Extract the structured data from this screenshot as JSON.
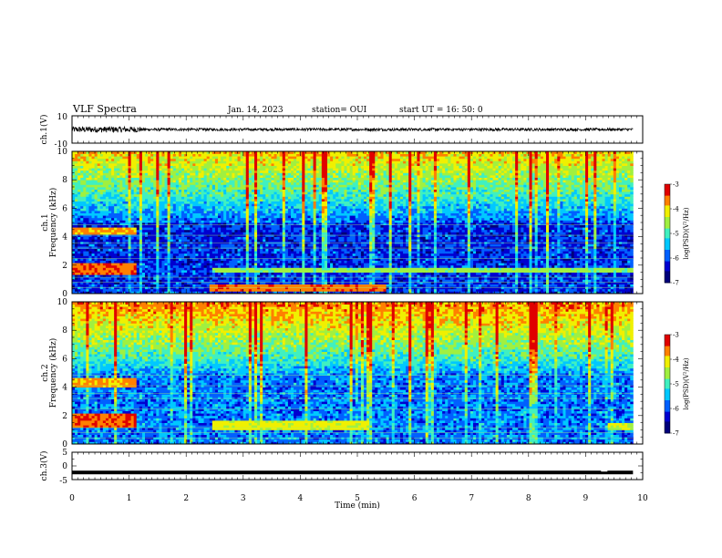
{
  "header": {
    "title": "VLF Spectra",
    "date": "Jan. 14, 2023",
    "station": "station= OUI",
    "start": "start  UT  =   16: 50: 0"
  },
  "chart_data": [
    {
      "type": "line",
      "name": "ch1-waveform",
      "ylabel": "ch.1(V)",
      "ylim": [
        -10,
        10
      ],
      "yticks": [
        "10",
        "-10"
      ],
      "xlim": [
        0,
        10
      ],
      "x_end": 9.83,
      "approx_amplitude": 1.0,
      "burst_range": [
        0.0,
        1.2
      ],
      "burst_amplitude": 2.2
    },
    {
      "type": "heatmap",
      "name": "ch1-spectrogram",
      "xlabel": "",
      "ylabel": "ch.1\nFrequency (kHz)",
      "ylim": [
        0,
        10
      ],
      "yticks": [
        "0",
        "2",
        "4",
        "6",
        "8",
        "10"
      ],
      "xlim": [
        0,
        10
      ],
      "x_end": 9.83,
      "colorbar": {
        "label": "log(PSD)(V²/Hz)",
        "range": [
          -7,
          -3
        ],
        "ticks": [
          "-3",
          "-4",
          "-5",
          "-6",
          "-7"
        ]
      },
      "features": [
        {
          "kind": "band",
          "freq_khz": [
            4.2,
            4.6
          ],
          "time_min": [
            0,
            1.15
          ],
          "level": -3.8
        },
        {
          "kind": "band",
          "freq_khz": [
            1.4,
            2.1
          ],
          "time_min": [
            0,
            1.15
          ],
          "level": -3.5
        },
        {
          "kind": "band",
          "freq_khz": [
            1.5,
            1.9
          ],
          "time_min": [
            2.45,
            9.83
          ],
          "level": -4.6
        },
        {
          "kind": "band",
          "freq_khz": [
            0.2,
            0.6
          ],
          "time_min": [
            2.4,
            5.5
          ],
          "level": -3.6
        }
      ]
    },
    {
      "type": "heatmap",
      "name": "ch2-spectrogram",
      "xlabel": "",
      "ylabel": "ch.2\nFrequency (kHz)",
      "ylim": [
        0,
        10
      ],
      "yticks": [
        "0",
        "2",
        "4",
        "6",
        "8",
        "10"
      ],
      "xlim": [
        0,
        10
      ],
      "x_end": 9.83,
      "colorbar": {
        "label": "log(PSD)(V²/Hz)",
        "range": [
          -7,
          -3
        ],
        "ticks": [
          "-3",
          "-4",
          "-5",
          "-6",
          "-7"
        ]
      },
      "features": [
        {
          "kind": "band",
          "freq_khz": [
            4.0,
            4.6
          ],
          "time_min": [
            0,
            1.15
          ],
          "level": -3.8
        },
        {
          "kind": "band",
          "freq_khz": [
            1.2,
            2.2
          ],
          "time_min": [
            0,
            1.15
          ],
          "level": -3.5
        },
        {
          "kind": "band",
          "freq_khz": [
            1.0,
            1.6
          ],
          "time_min": [
            2.45,
            5.2
          ],
          "level": -4.2
        },
        {
          "kind": "band",
          "freq_khz": [
            1.0,
            1.5
          ],
          "time_min": [
            9.4,
            9.83
          ],
          "level": -4.3
        }
      ]
    },
    {
      "type": "line",
      "name": "ch3-waveform",
      "ylabel": "ch.3(V)",
      "ylim": [
        -5,
        5
      ],
      "yticks": [
        "5",
        "0",
        "-5"
      ],
      "xlim": [
        0,
        10
      ],
      "x_end": 9.83,
      "level": -2.4
    }
  ],
  "xaxis": {
    "label": "Time  (min)",
    "ticks": [
      "0",
      "1",
      "2",
      "3",
      "4",
      "5",
      "6",
      "7",
      "8",
      "9",
      "10"
    ]
  },
  "colors": {
    "colormap": [
      "#00007a",
      "#0000d0",
      "#0060ff",
      "#00c8ff",
      "#40f0c0",
      "#a0f040",
      "#f0f000",
      "#ff8000",
      "#e00000",
      "#ff80ff"
    ]
  }
}
